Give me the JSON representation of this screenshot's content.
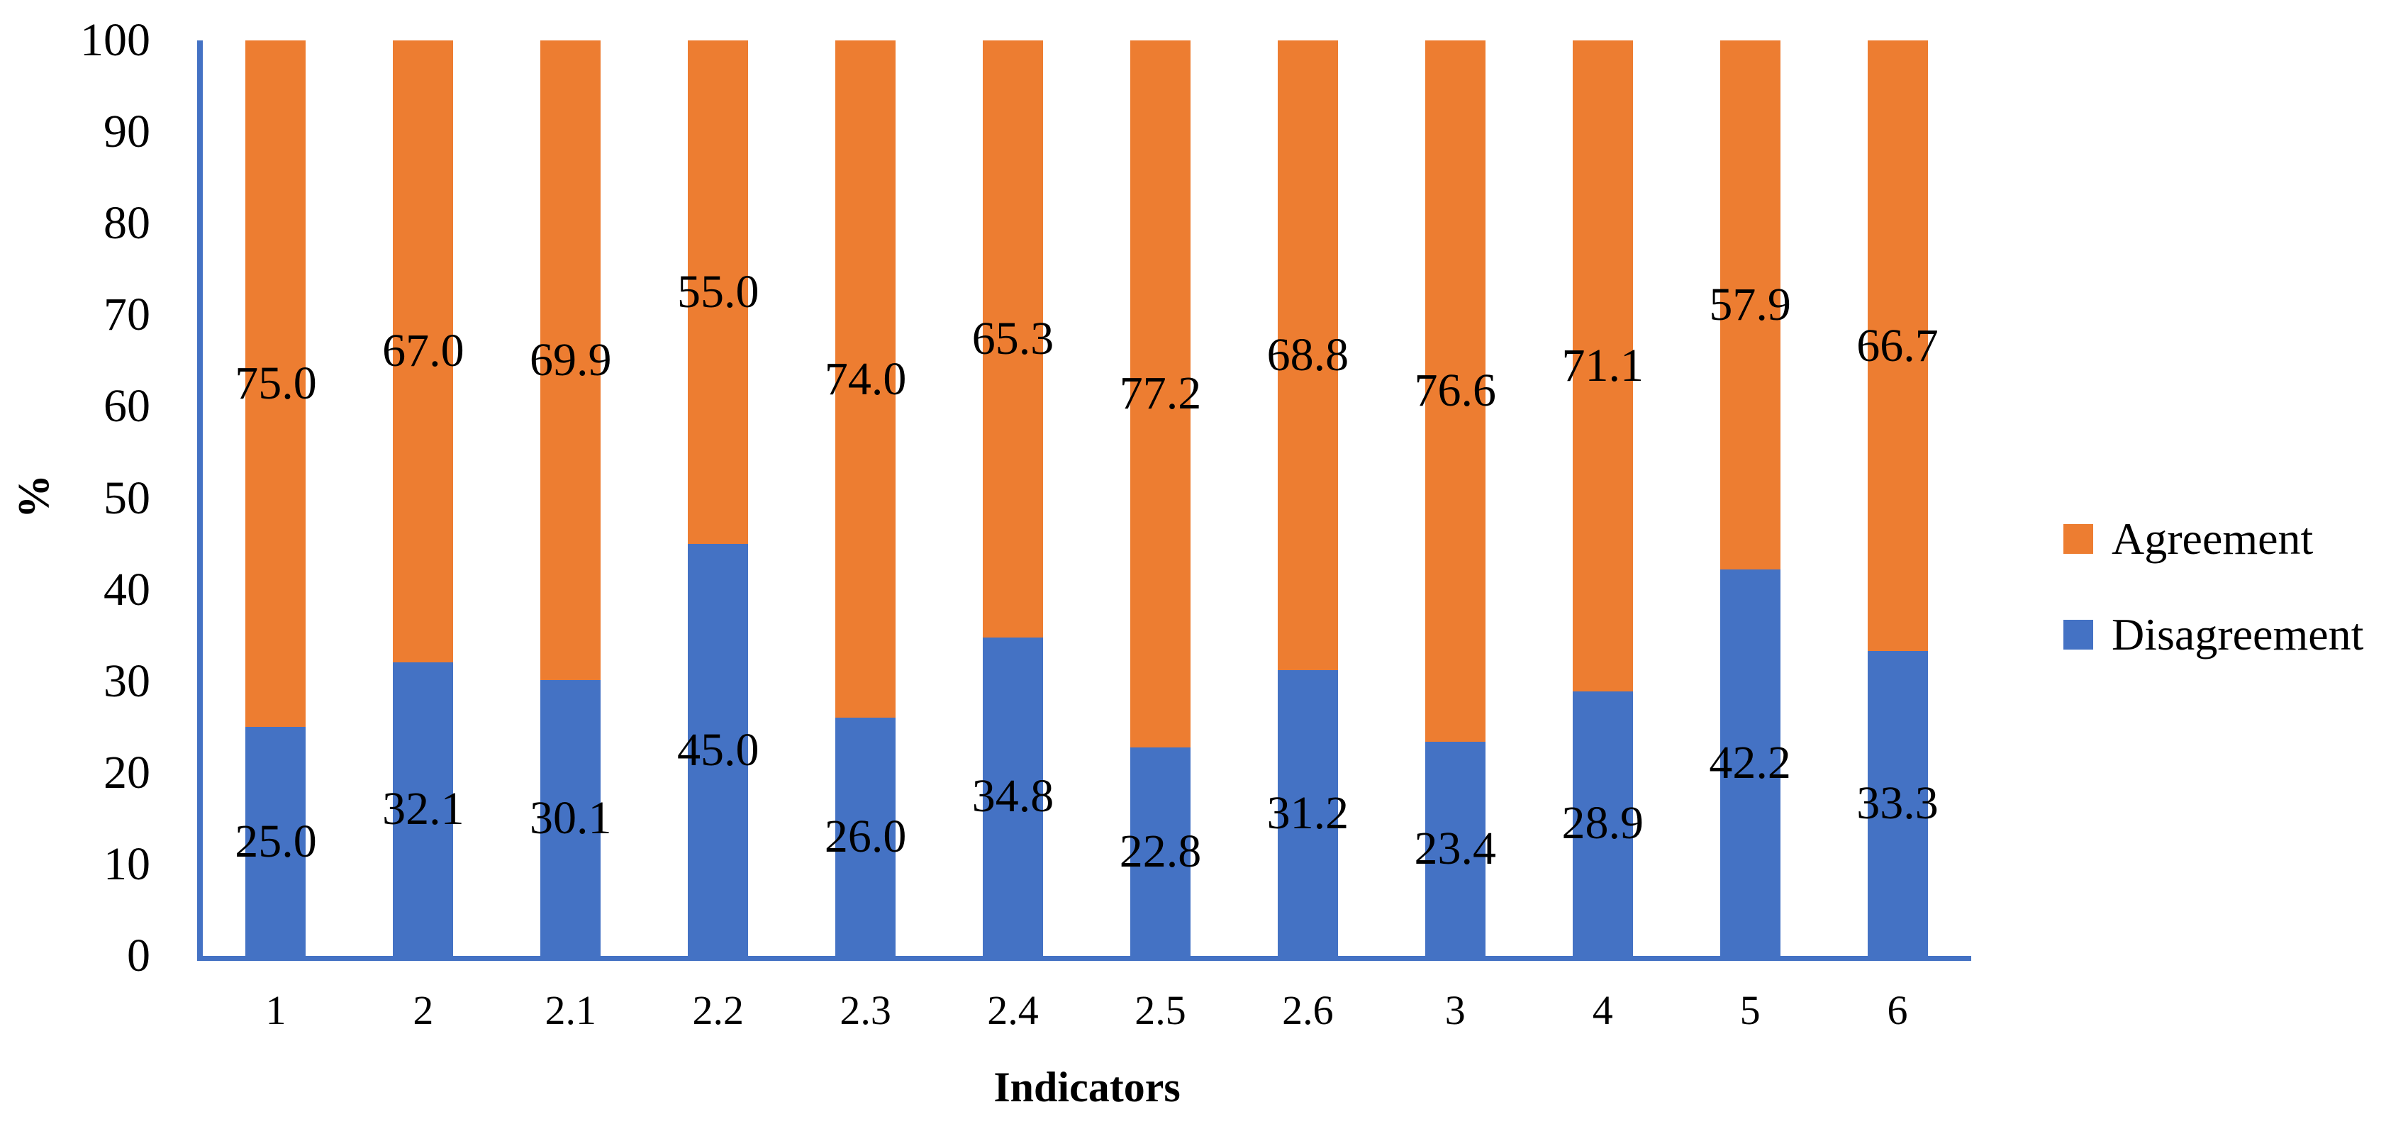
{
  "figure": {
    "y_axis_title": "%",
    "x_axis_title": "Indicators",
    "background": "#ffffff",
    "axis_color": "#4472C4",
    "text_color": "#000000",
    "legend": {
      "position": "right",
      "items": [
        {
          "label": "Agreement",
          "color": "#ED7D31"
        },
        {
          "label": "Disagreement",
          "color": "#4472C4"
        }
      ]
    }
  },
  "chart_data": {
    "type": "bar",
    "subtype": "stacked-percentage",
    "title": "",
    "xlabel": "Indicators",
    "ylabel": "%",
    "ylim": [
      0,
      100
    ],
    "y_ticks": [
      0,
      10,
      20,
      30,
      40,
      50,
      60,
      70,
      80,
      90,
      100
    ],
    "grid": false,
    "legend_position": "right",
    "categories": [
      "1",
      "2",
      "2.1",
      "2.2",
      "2.3",
      "2.4",
      "2.5",
      "2.6",
      "3",
      "4",
      "5",
      "6"
    ],
    "series": [
      {
        "name": "Disagreement",
        "color": "#4472C4",
        "values": [
          25.0,
          32.1,
          30.1,
          45.0,
          26.0,
          34.8,
          22.8,
          31.2,
          23.4,
          28.9,
          42.2,
          33.3
        ]
      },
      {
        "name": "Agreement",
        "color": "#ED7D31",
        "values": [
          75.0,
          67.0,
          69.9,
          55.0,
          74.0,
          65.3,
          77.2,
          68.8,
          76.6,
          71.1,
          57.9,
          66.7
        ]
      }
    ],
    "label_format": "one_decimal"
  }
}
